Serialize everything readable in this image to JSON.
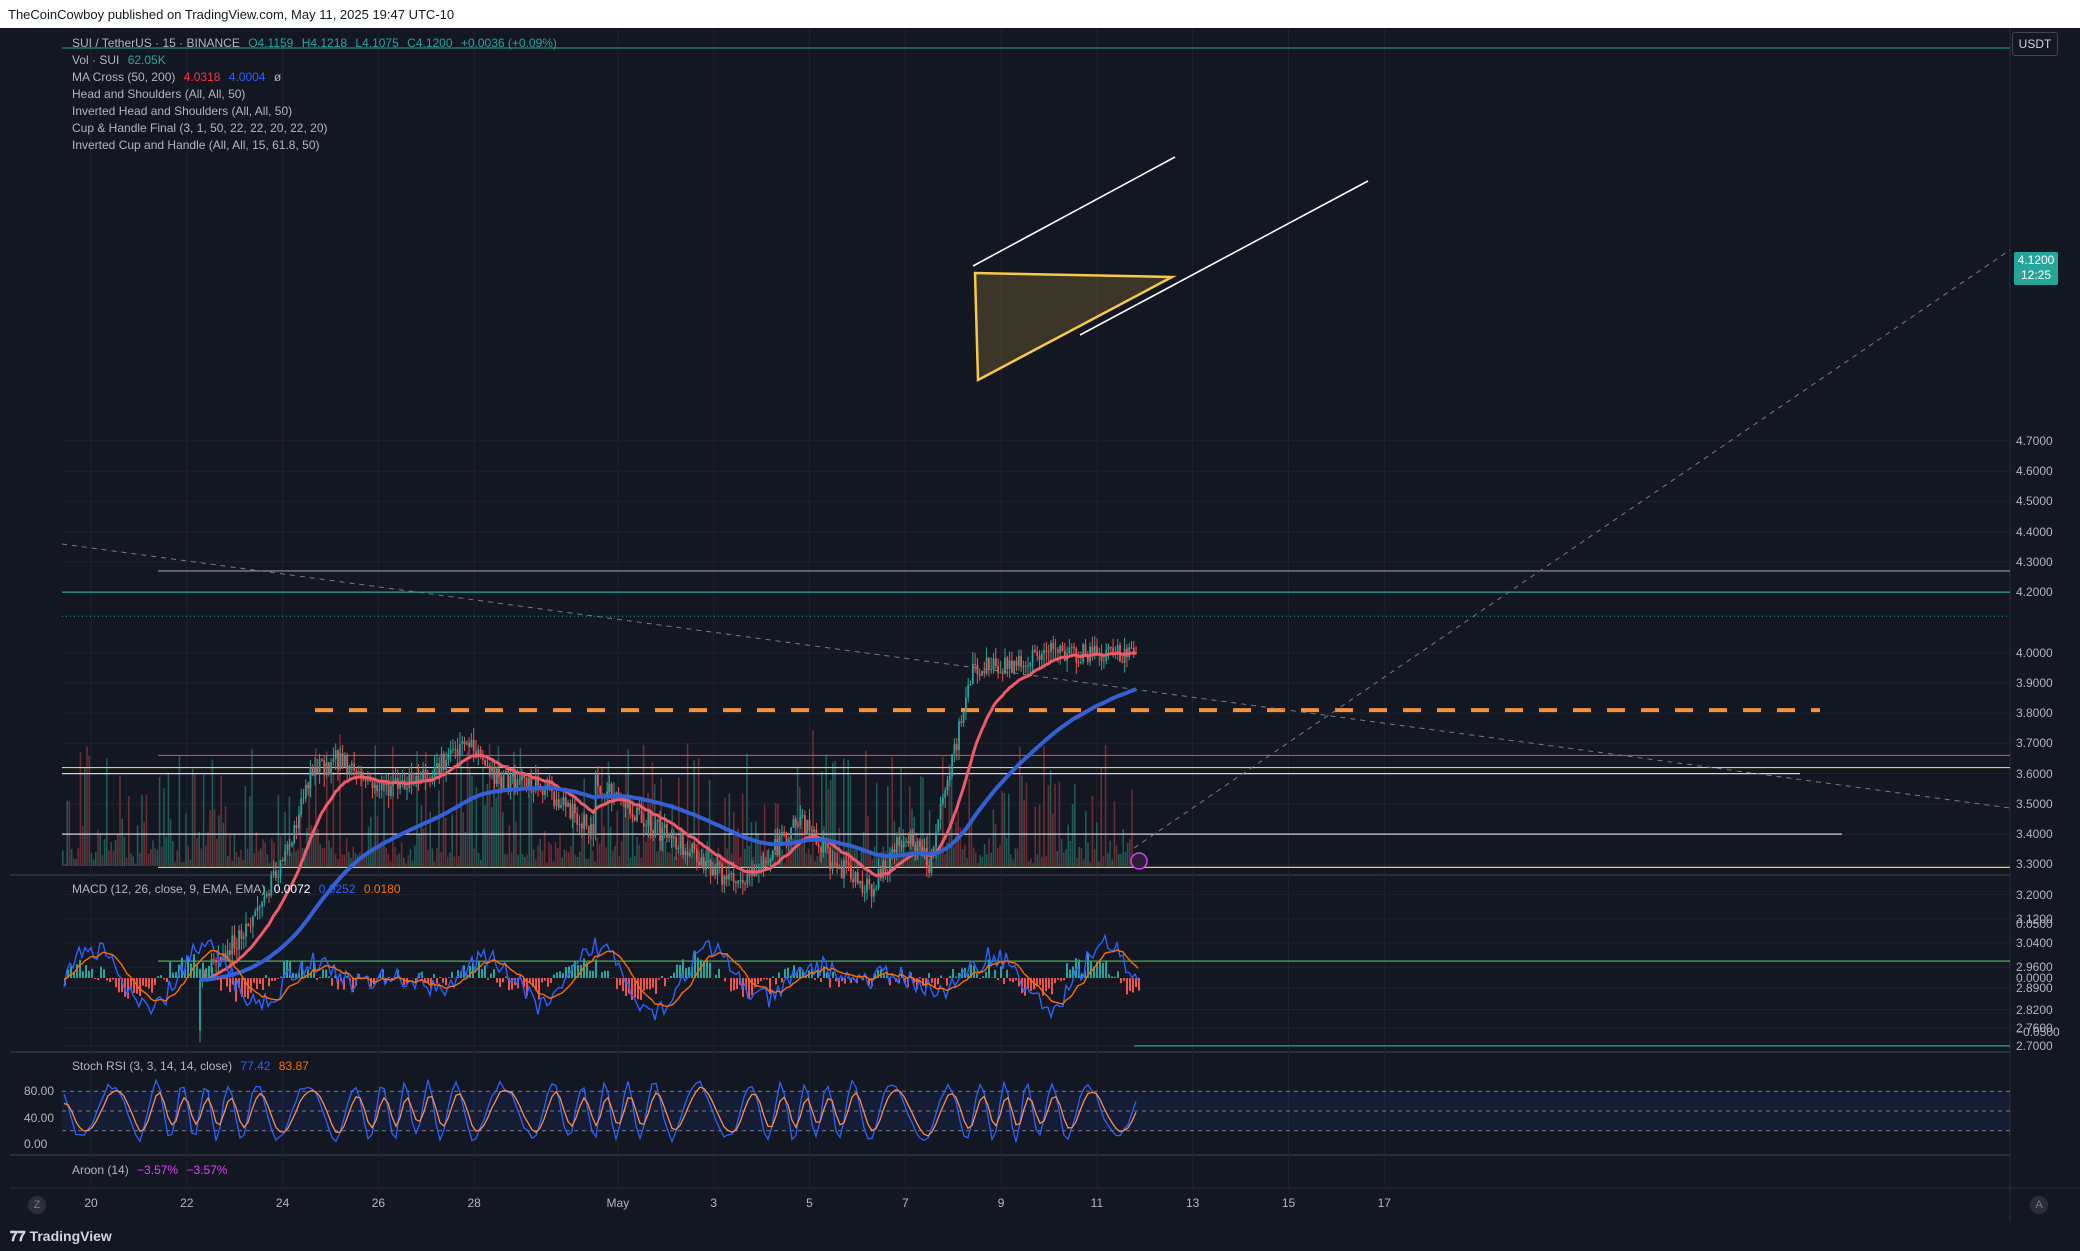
{
  "header": {
    "publisher": "TheCoinCowboy published on TradingView.com, May 11, 2025 19:47 UTC-10"
  },
  "footer": {
    "brand": "TradingView",
    "zoom_left": "Z",
    "zoom_right": "A"
  },
  "symbol": {
    "name": "SUI / TetherUS · 15 · BINANCE",
    "open": "O4.1159",
    "high": "H4.1218",
    "low": "L4.1075",
    "close": "C4.1200",
    "change": "+0.0036 (+0.09%)"
  },
  "indicators": {
    "vol": {
      "label": "Vol · SUI",
      "value": "62.05K"
    },
    "ma_cross": {
      "label": "MA Cross (50, 200)",
      "v1": "4.0318",
      "v2": "4.0004",
      "v3": "ø"
    },
    "patterns": [
      "Head and Shoulders (All, All, 50)",
      "Inverted Head and Shoulders (All, All, 50)",
      "Cup & Handle Final (3, 1, 50, 22, 22, 20, 22, 20)",
      "Inverted Cup and Handle (All, All, 15, 61.8, 50)"
    ],
    "macd": {
      "label": "MACD (12, 26, close, 9, EMA, EMA)",
      "v1": "0.0072",
      "v2": "0.0252",
      "v3": "0.0180"
    },
    "stoch": {
      "label": "Stoch RSI (3, 3, 14, 14, close)",
      "v1": "77.42",
      "v2": "83.87"
    },
    "aroon": {
      "label": "Aroon (14)",
      "v1": "−3.57%",
      "v2": "−3.57%"
    }
  },
  "price_axis": {
    "unit": "USDT",
    "current_price": "4.1200",
    "countdown": "12:25",
    "ticks": [
      "4.7000",
      "4.6000",
      "4.5000",
      "4.4000",
      "4.3000",
      "4.2000",
      "4.0000",
      "3.9000",
      "3.8000",
      "3.7000",
      "3.6000",
      "3.5000",
      "3.4000",
      "3.3000",
      "3.2000",
      "3.1200",
      "3.0400",
      "2.9600",
      "2.8900",
      "2.8200",
      "2.7600",
      "2.7000"
    ]
  },
  "macd_axis": {
    "ticks": [
      "0.0500",
      "0.0000",
      "−0.0500"
    ]
  },
  "stoch_axis": {
    "ticks": [
      "80.00",
      "40.00",
      "0.00"
    ]
  },
  "time_axis": {
    "ticks": [
      "20",
      "22",
      "24",
      "26",
      "28",
      "May",
      "3",
      "5",
      "7",
      "9",
      "11",
      "13",
      "15",
      "17"
    ]
  },
  "colors": {
    "background": "#131722",
    "up": "#26a69a",
    "down": "#ef5350",
    "ma_fast": "#f05a68",
    "ma_slow": "#3460d6",
    "support_orange": "#f7913a",
    "pattern_yellow": "#f7c948",
    "trendline_white": "#ffffff"
  },
  "chart_data": {
    "type": "candlestick",
    "title": "SUI / TetherUS · 15 · BINANCE",
    "ylabel": "USDT",
    "ylim": [
      2.69,
      4.78
    ],
    "x_range": [
      "Apr 19",
      "May 18"
    ],
    "grid": true,
    "legend": "top-left",
    "close_path": {
      "days": [
        21.5,
        22.5,
        23.3,
        24.0,
        24.6,
        25.2,
        26.0,
        27.0,
        27.9,
        28.5,
        29.5,
        30.5,
        30.0,
        31.5,
        32.5,
        33.5,
        34.0,
        34.8,
        35.5,
        36.3,
        37.0,
        37.5,
        38.0,
        38.4,
        39.0,
        40.0,
        40.8,
        41.7,
        42.2
      ],
      "prices": [
        2.75,
        2.95,
        3.1,
        3.3,
        3.6,
        3.65,
        3.55,
        3.6,
        3.7,
        3.58,
        3.55,
        3.4,
        3.65,
        3.45,
        3.35,
        3.22,
        3.3,
        3.45,
        3.3,
        3.22,
        3.4,
        3.3,
        3.65,
        3.95,
        3.95,
        4.0,
        4.0,
        4.0,
        4.12
      ]
    },
    "horizontal_levels": [
      {
        "price": 4.27,
        "color": "#9598a1"
      },
      {
        "price": 4.2,
        "color": "#26a69a"
      },
      {
        "price": 3.81,
        "color": "#f7913a",
        "style": "dashed"
      },
      {
        "price": 3.66,
        "color": "#f23645"
      },
      {
        "price": 3.62,
        "color": "#f7c948"
      },
      {
        "price": 3.6,
        "color": "#d1d4dc"
      },
      {
        "price": 3.4,
        "color": "#d1d4dc"
      },
      {
        "price": 3.29,
        "color": "#f7c948"
      },
      {
        "price": 2.98,
        "color": "#4caf50"
      },
      {
        "price": 2.7,
        "color": "#26a69a"
      }
    ],
    "macd_range": [
      -0.065,
      0.08
    ],
    "stoch_range": [
      0,
      100
    ]
  }
}
